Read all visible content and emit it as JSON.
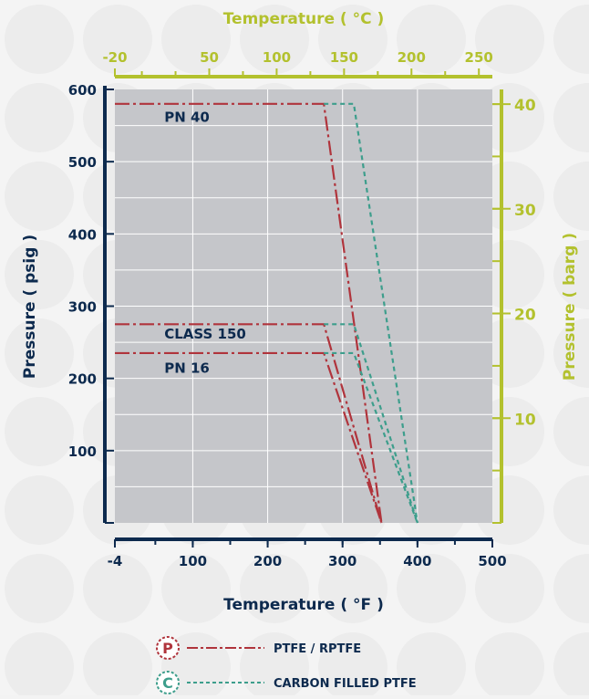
{
  "chart_data": {
    "type": "line",
    "title": "",
    "x_bottom": {
      "label": "Temperature ( °F )",
      "ticks": [
        -4,
        100,
        200,
        300,
        400,
        500
      ],
      "tick_labels": [
        "-4",
        "100",
        "200",
        "300",
        "400",
        "500"
      ],
      "range": [
        -4,
        500
      ]
    },
    "x_top": {
      "label": "Temperature ( °C )",
      "ticks": [
        -20,
        50,
        100,
        150,
        200,
        250
      ],
      "tick_labels": [
        "-20",
        "50",
        "100",
        "150",
        "200",
        "250"
      ],
      "range": [
        -20,
        260
      ]
    },
    "y_left": {
      "label": "Pressure ( psig )",
      "ticks": [
        100,
        200,
        300,
        400,
        500,
        600
      ],
      "tick_labels": [
        "100",
        "200",
        "300",
        "400",
        "500",
        "600"
      ],
      "range": [
        0,
        600
      ]
    },
    "y_right": {
      "label": "Pressure ( barg )",
      "ticks": [
        10,
        20,
        30,
        40
      ],
      "tick_labels": [
        "10",
        "20",
        "30",
        "40"
      ],
      "range": [
        0,
        41.4
      ]
    },
    "grid": true,
    "series": [
      {
        "name": "PTFE / RPTFE",
        "group": "PN 40",
        "color": "#b0343c",
        "dash": "dashdot",
        "x": [
          -4,
          275,
          352
        ],
        "y": [
          580,
          580,
          0
        ]
      },
      {
        "name": "PTFE / RPTFE",
        "group": "CLASS 150",
        "color": "#b0343c",
        "dash": "dashdot",
        "x": [
          -4,
          275,
          352
        ],
        "y": [
          275,
          275,
          0
        ]
      },
      {
        "name": "PTFE / RPTFE",
        "group": "PN 16",
        "color": "#b0343c",
        "dash": "dashdot",
        "x": [
          -4,
          275,
          352
        ],
        "y": [
          235,
          235,
          0
        ]
      },
      {
        "name": "CARBON FILLED PTFE",
        "group": "PN 40",
        "color": "#3d9e8c",
        "dash": "dash",
        "x": [
          275,
          315,
          400
        ],
        "y": [
          580,
          580,
          0
        ]
      },
      {
        "name": "CARBON FILLED PTFE",
        "group": "CLASS 150",
        "color": "#3d9e8c",
        "dash": "dash",
        "x": [
          275,
          315,
          400
        ],
        "y": [
          275,
          275,
          0
        ]
      },
      {
        "name": "CARBON FILLED PTFE",
        "group": "PN 16",
        "color": "#3d9e8c",
        "dash": "dash",
        "x": [
          275,
          315,
          400
        ],
        "y": [
          235,
          235,
          0
        ]
      }
    ],
    "annotations": [
      {
        "text": "PN 40",
        "x": 62,
        "y": 555
      },
      {
        "text": "CLASS 150",
        "x": 62,
        "y": 255
      },
      {
        "text": "PN 16",
        "x": 62,
        "y": 208
      }
    ],
    "legend": [
      {
        "badge": "P",
        "label": "PTFE / RPTFE",
        "color": "#b0343c"
      },
      {
        "badge": "C",
        "label": "CARBON FILLED PTFE",
        "color": "#3d9e8c"
      }
    ],
    "colors": {
      "navy": "#0d2a4e",
      "olive": "#b3c12e",
      "plot_bg": "#c5c6ca",
      "ptfe": "#b0343c",
      "carbon": "#3d9e8c"
    }
  }
}
